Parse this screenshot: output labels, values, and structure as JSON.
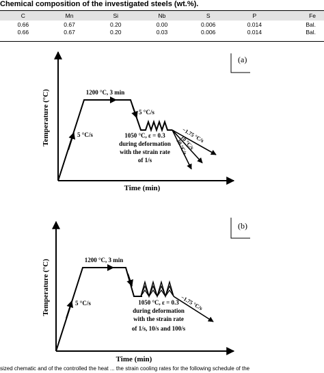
{
  "table": {
    "caption": "Chemical composition of the investigated steels (wt.%).",
    "headers": [
      "C",
      "Mn",
      "Si",
      "Nb",
      "S",
      "P",
      "Fe"
    ],
    "rows": [
      [
        "0.66",
        "0.67",
        "0.20",
        "0.00",
        "0.006",
        "0.014",
        "Bal."
      ],
      [
        "0.66",
        "0.67",
        "0.20",
        "0.03",
        "0.006",
        "0.014",
        "Bal."
      ]
    ]
  },
  "figure_a": {
    "panel_label": "(a)",
    "ylabel": "Temperature (°C)",
    "xlabel": "Time (min)",
    "hold_label": "1200 °C, 3 min",
    "heat_rate": "5 °C/s",
    "cool_rate": "5 °C/s",
    "deform_lines": [
      "1050 °C, ε = 0.3",
      "during deformation",
      "with the strain rate",
      "of 1/s"
    ],
    "quench_rates": [
      "−1.75 °C/s",
      "10 °C/s",
      "30 °C/s"
    ]
  },
  "figure_b": {
    "panel_label": "(b)",
    "ylabel": "Temperature (°C)",
    "xlabel": "Time (min)",
    "hold_label": "1200 °C, 3 min",
    "heat_rate": "5 °C/s",
    "deform_lines": [
      "1050 °C, ε = 0.3",
      "during deformation",
      "with the strain rate",
      "of 1/s, 10/s and 100/s"
    ],
    "quench_rates": [
      "−1.75 °C/s"
    ]
  },
  "bottom_text": "sized chematic and of the controlled the heat ... the strain cooling rates for the following schedule of the"
}
